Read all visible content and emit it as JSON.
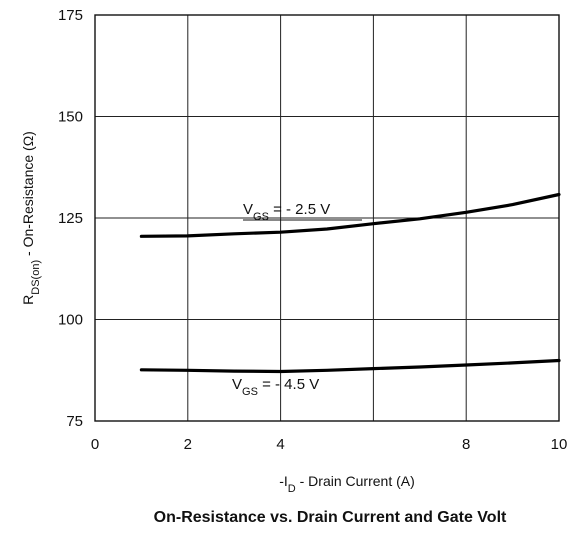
{
  "chart_data": {
    "type": "line",
    "title": "On-Resistance vs. Drain Current and Gate Volt",
    "xlabel": {
      "pre": "-I",
      "sub": "D",
      "post": " - Drain Current (A)"
    },
    "ylabel": {
      "pre": "R",
      "sub": "DS(on)",
      "post": " - On-Resistance (Ω)"
    },
    "xlim": [
      0,
      10
    ],
    "ylim": [
      75,
      175
    ],
    "xticks": [
      0,
      2,
      4,
      8,
      10
    ],
    "yticks": [
      75,
      100,
      125,
      150,
      175
    ],
    "x_gridlines": [
      2,
      4,
      6,
      8
    ],
    "y_gridlines": [
      100,
      125,
      150
    ],
    "grid": true,
    "series": [
      {
        "label": {
          "pre": "V",
          "sub": "GS",
          "post": " = - 2.5  V"
        },
        "x": [
          1,
          2,
          3,
          4,
          5,
          6,
          7,
          8,
          9,
          10
        ],
        "y": [
          120.5,
          120.6,
          121.1,
          121.5,
          122.3,
          123.6,
          124.8,
          126.4,
          128.3,
          130.8
        ]
      },
      {
        "label": {
          "pre": "V",
          "sub": "GS",
          "post": " = - 4.5  V"
        },
        "x": [
          1,
          2,
          3,
          4,
          5,
          6,
          7,
          8,
          9,
          10
        ],
        "y": [
          87.6,
          87.5,
          87.3,
          87.2,
          87.5,
          87.9,
          88.3,
          88.8,
          89.3,
          89.9
        ]
      }
    ]
  }
}
